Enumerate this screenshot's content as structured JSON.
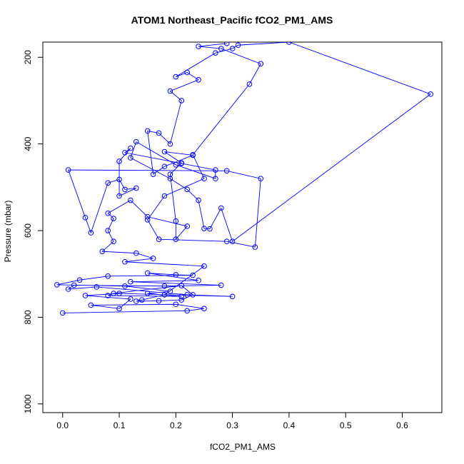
{
  "chart_data": {
    "type": "line",
    "title": "ATOM1 Northeast_Pacific fCO2_PM1_AMS",
    "xlabel": "fCO2_PM1_AMS",
    "ylabel": "Pressure (mbar)",
    "xlim": [
      -0.035,
      0.67
    ],
    "ylim": [
      1020,
      165
    ],
    "y_reversed": true,
    "grid": false,
    "x_ticks": [
      0.0,
      0.1,
      0.2,
      0.3,
      0.4,
      0.5,
      0.6
    ],
    "x_tick_labels": [
      "0.0",
      "0.1",
      "0.2",
      "0.3",
      "0.4",
      "0.5",
      "0.6"
    ],
    "y_ticks": [
      200,
      400,
      600,
      800,
      1000
    ],
    "y_tick_labels": [
      "200",
      "400",
      "600",
      "800",
      "1000"
    ],
    "series": [
      {
        "color": "#0000ff",
        "marker": "open-circle",
        "points": [
          [
            0.0,
            790
          ],
          [
            0.22,
            785
          ],
          [
            0.25,
            780
          ],
          [
            0.2,
            770
          ],
          [
            0.05,
            772
          ],
          [
            0.1,
            780
          ],
          [
            0.12,
            758
          ],
          [
            0.04,
            750
          ],
          [
            0.1,
            745
          ],
          [
            0.3,
            752
          ],
          [
            0.22,
            748
          ],
          [
            0.06,
            730
          ],
          [
            0.01,
            735
          ],
          [
            0.02,
            726
          ],
          [
            0.18,
            728
          ],
          [
            0.28,
            726
          ],
          [
            0.12,
            718
          ],
          [
            0.24,
            715
          ],
          [
            0.15,
            698
          ],
          [
            0.2,
            702
          ],
          [
            0.23,
            703
          ],
          [
            0.08,
            705
          ],
          [
            0.03,
            714
          ],
          [
            -0.01,
            725
          ],
          [
            0.11,
            728
          ],
          [
            0.19,
            740
          ],
          [
            0.15,
            745
          ],
          [
            0.21,
            752
          ],
          [
            0.08,
            750
          ],
          [
            0.09,
            745
          ],
          [
            0.21,
            727
          ],
          [
            0.23,
            748
          ],
          [
            0.21,
            760
          ],
          [
            0.17,
            762
          ],
          [
            0.13,
            763
          ],
          [
            0.14,
            760
          ],
          [
            0.18,
            748
          ],
          [
            0.25,
            682
          ],
          [
            0.11,
            672
          ],
          [
            0.16,
            664
          ],
          [
            0.13,
            652
          ],
          [
            0.07,
            648
          ],
          [
            0.09,
            625
          ],
          [
            0.08,
            600
          ],
          [
            0.09,
            572
          ],
          [
            0.08,
            560
          ],
          [
            0.12,
            530
          ],
          [
            0.15,
            568
          ],
          [
            0.22,
            590
          ],
          [
            0.2,
            620
          ],
          [
            0.2,
            578
          ],
          [
            0.19,
            470
          ],
          [
            0.21,
            444
          ],
          [
            0.18,
            418
          ],
          [
            0.23,
            426
          ],
          [
            0.18,
            452
          ],
          [
            0.16,
            470
          ],
          [
            0.15,
            370
          ],
          [
            0.17,
            375
          ],
          [
            0.19,
            400
          ],
          [
            0.21,
            300
          ],
          [
            0.19,
            278
          ],
          [
            0.24,
            252
          ],
          [
            0.22,
            235
          ],
          [
            0.2,
            245
          ],
          [
            0.27,
            190
          ],
          [
            0.3,
            180
          ],
          [
            0.31,
            172
          ],
          [
            0.4,
            165
          ],
          [
            0.65,
            285
          ],
          [
            0.3,
            625
          ],
          [
            0.28,
            548
          ],
          [
            0.26,
            596
          ],
          [
            0.25,
            595
          ],
          [
            0.24,
            530
          ],
          [
            0.22,
            505
          ],
          [
            0.19,
            480
          ],
          [
            0.12,
            432
          ],
          [
            0.13,
            395
          ],
          [
            0.2,
            448
          ],
          [
            0.27,
            480
          ],
          [
            0.27,
            460
          ],
          [
            0.21,
            445
          ],
          [
            0.11,
            420
          ],
          [
            0.12,
            410
          ],
          [
            0.1,
            440
          ],
          [
            0.1,
            520
          ],
          [
            0.13,
            502
          ],
          [
            0.11,
            505
          ],
          [
            0.1,
            482
          ],
          [
            0.08,
            490
          ],
          [
            0.05,
            605
          ],
          [
            0.04,
            570
          ],
          [
            0.01,
            460
          ],
          [
            0.29,
            462
          ],
          [
            0.35,
            480
          ],
          [
            0.34,
            638
          ],
          [
            0.29,
            625
          ],
          [
            0.17,
            620
          ],
          [
            0.15,
            575
          ],
          [
            0.18,
            520
          ],
          [
            0.25,
            480
          ],
          [
            0.23,
            425
          ],
          [
            0.33,
            262
          ],
          [
            0.35,
            215
          ],
          [
            0.28,
            180
          ],
          [
            0.24,
            175
          ],
          [
            0.29,
            168
          ]
        ]
      }
    ]
  }
}
